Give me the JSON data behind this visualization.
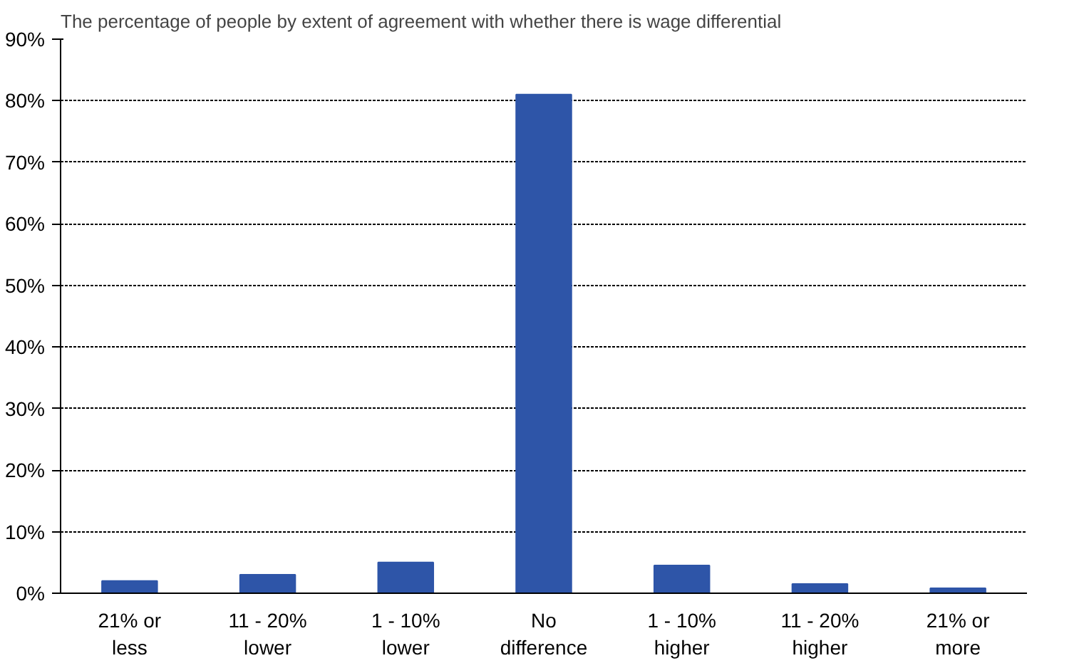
{
  "chart_data": {
    "type": "bar",
    "title": "The percentage of people by extent of agreement with whether there is wage differential",
    "categories": [
      "21% or\nless",
      "11 - 20%\nlower",
      "1 - 10%\nlower",
      "No\ndifference",
      "1 - 10%\nhigher",
      "11 - 20%\nhigher",
      "21% or\nmore"
    ],
    "values": [
      2,
      3,
      5,
      81,
      4.5,
      1.5,
      0.8
    ],
    "color": "#2e55a8",
    "ylim": [
      0,
      90
    ],
    "yticks": [
      {
        "value": 0,
        "label": "0%"
      },
      {
        "value": 10,
        "label": "10%"
      },
      {
        "value": 20,
        "label": "20%"
      },
      {
        "value": 30,
        "label": "30%"
      },
      {
        "value": 40,
        "label": "40%"
      },
      {
        "value": 50,
        "label": "50%"
      },
      {
        "value": 60,
        "label": "60%"
      },
      {
        "value": 70,
        "label": "70%"
      },
      {
        "value": 80,
        "label": "80%"
      },
      {
        "value": 90,
        "label": "90%"
      }
    ],
    "grid": "y"
  }
}
